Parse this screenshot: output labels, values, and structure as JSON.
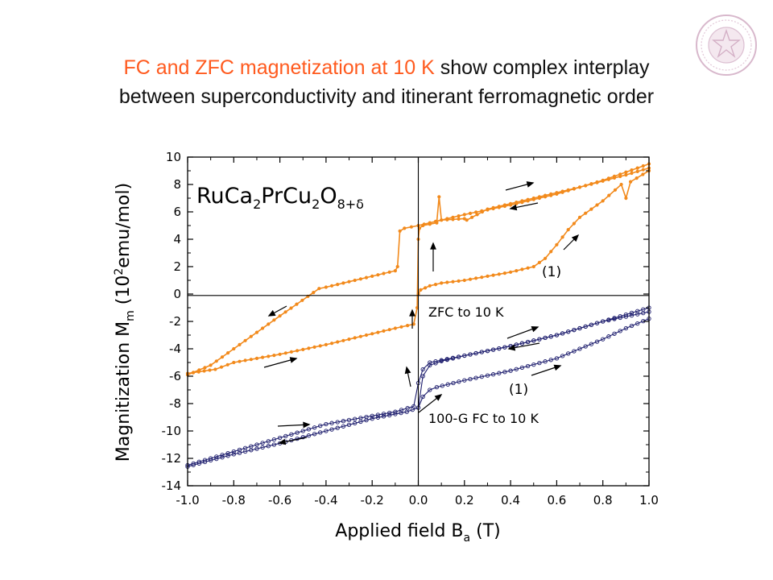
{
  "slide": {
    "title_highlight": "FC and ZFC magnetization at 10 K",
    "title_rest_line1": " show complex interplay",
    "title_line2": "between superconductivity and itinerant ferromagnetic order",
    "highlight_color": "#ff5a1e",
    "logo_icon": "university-seal-icon"
  },
  "chart_data": {
    "type": "scatter",
    "xlabel": "Applied field  B",
    "xlabel_sub": "a",
    "xlabel_unit": " (T)",
    "ylabel_main": "Magnitization  M",
    "ylabel_sub": "m",
    "ylabel_unit_pre": " (10",
    "ylabel_unit_sup": "2",
    "ylabel_unit_post": "emu/mol)",
    "xlim": [
      -1.0,
      1.0
    ],
    "ylim": [
      -14,
      10
    ],
    "x_ticks": [
      -1.0,
      -0.8,
      -0.6,
      -0.4,
      -0.2,
      0.0,
      0.2,
      0.4,
      0.6,
      0.8,
      1.0
    ],
    "x_tick_labels": [
      "-1.0",
      "-0.8",
      "-0.6",
      "-0.4",
      "-0.2",
      "0.0",
      "0.2",
      "0.4",
      "0.6",
      "0.8",
      "1.0"
    ],
    "y_ticks": [
      10,
      8,
      6,
      4,
      2,
      0,
      -2,
      -4,
      -6,
      -8,
      -10,
      -12,
      -14
    ],
    "y_tick_labels": [
      "10",
      "8",
      "6",
      "4",
      "2",
      "0",
      "-2",
      "-4",
      "-6",
      "-8",
      "-10",
      "-12",
      "-14"
    ],
    "zero_lines": true,
    "compound": {
      "a": "RuCa",
      "b": "2",
      "c": "PrCu",
      "d": "2",
      "e": "O",
      "f": "8+δ"
    },
    "annotations": {
      "zfc_label": "ZFC to 10 K",
      "fc_label": "100-G FC to 10 K",
      "zfc_initial": "(1)",
      "fc_initial": "(1)"
    },
    "series": [
      {
        "name": "ZFC to 10 K",
        "color": "#f28a1c",
        "marker": "filled-circle",
        "initial": [
          [
            0.0,
            0.0
          ],
          [
            0.01,
            0.3
          ],
          [
            0.05,
            0.6
          ],
          [
            0.1,
            0.8
          ],
          [
            0.2,
            1.0
          ],
          [
            0.3,
            1.3
          ],
          [
            0.4,
            1.6
          ],
          [
            0.5,
            2.0
          ],
          [
            0.55,
            2.6
          ],
          [
            0.6,
            3.6
          ],
          [
            0.65,
            4.7
          ],
          [
            0.7,
            5.6
          ],
          [
            0.8,
            6.8
          ],
          [
            0.88,
            8.0
          ],
          [
            0.9,
            7.0
          ],
          [
            0.92,
            8.2
          ],
          [
            1.0,
            9.0
          ]
        ],
        "descending": [
          [
            1.0,
            9.5
          ],
          [
            0.8,
            8.3
          ],
          [
            0.6,
            7.3
          ],
          [
            0.4,
            6.5
          ],
          [
            0.2,
            5.8
          ],
          [
            0.1,
            5.4
          ],
          [
            0.0,
            5.0
          ],
          [
            -0.06,
            4.8
          ],
          [
            -0.08,
            4.6
          ],
          [
            -0.09,
            2.0
          ],
          [
            -0.1,
            1.7
          ],
          [
            -0.2,
            1.3
          ],
          [
            -0.3,
            0.9
          ],
          [
            -0.4,
            0.5
          ],
          [
            -0.43,
            0.4
          ],
          [
            -0.6,
            -1.6
          ],
          [
            -0.8,
            -4.0
          ],
          [
            -0.9,
            -5.2
          ],
          [
            -1.0,
            -5.9
          ]
        ],
        "ascending": [
          [
            -1.0,
            -5.8
          ],
          [
            -0.88,
            -5.5
          ],
          [
            -0.8,
            -5.0
          ],
          [
            -0.6,
            -4.4
          ],
          [
            -0.4,
            -3.7
          ],
          [
            -0.2,
            -2.9
          ],
          [
            -0.1,
            -2.5
          ],
          [
            -0.02,
            -2.2
          ],
          [
            -0.005,
            -1.0
          ],
          [
            0.0,
            4.0
          ],
          [
            0.005,
            4.8
          ],
          [
            0.02,
            5.0
          ],
          [
            0.08,
            5.2
          ],
          [
            0.09,
            7.1
          ],
          [
            0.1,
            5.4
          ],
          [
            0.2,
            5.5
          ],
          [
            0.21,
            5.4
          ],
          [
            0.3,
            6.2
          ],
          [
            0.5,
            7.0
          ],
          [
            0.7,
            7.8
          ],
          [
            0.9,
            8.7
          ],
          [
            1.0,
            9.2
          ]
        ]
      },
      {
        "name": "100-G FC to 10 K",
        "color": "#1e1e6e",
        "marker": "open-circle",
        "initial": [
          [
            0.0,
            -8.3
          ],
          [
            0.02,
            -7.5
          ],
          [
            0.05,
            -7.0
          ],
          [
            0.08,
            -6.8
          ],
          [
            0.2,
            -6.3
          ],
          [
            0.4,
            -5.6
          ],
          [
            0.6,
            -4.7
          ],
          [
            0.8,
            -3.3
          ],
          [
            0.9,
            -2.5
          ],
          [
            1.0,
            -1.8
          ]
        ],
        "descending": [
          [
            1.0,
            -1.0
          ],
          [
            0.8,
            -2.0
          ],
          [
            0.6,
            -3.0
          ],
          [
            0.4,
            -3.8
          ],
          [
            0.2,
            -4.5
          ],
          [
            0.05,
            -5.0
          ],
          [
            0.02,
            -5.5
          ],
          [
            0.0,
            -6.5
          ],
          [
            -0.02,
            -8.2
          ],
          [
            -0.1,
            -8.6
          ],
          [
            -0.4,
            -9.5
          ],
          [
            -0.6,
            -10.5
          ],
          [
            -0.8,
            -11.5
          ],
          [
            -1.0,
            -12.5
          ]
        ],
        "ascending": [
          [
            -1.0,
            -12.6
          ],
          [
            -0.8,
            -11.7
          ],
          [
            -0.6,
            -10.9
          ],
          [
            -0.4,
            -10.0
          ],
          [
            -0.2,
            -9.1
          ],
          [
            -0.05,
            -8.6
          ],
          [
            0.0,
            -8.3
          ],
          [
            0.02,
            -6.0
          ],
          [
            0.05,
            -5.2
          ],
          [
            0.1,
            -4.9
          ],
          [
            0.2,
            -4.5
          ],
          [
            0.4,
            -3.8
          ],
          [
            0.6,
            -3.0
          ],
          [
            0.8,
            -2.0
          ],
          [
            1.0,
            -1.3
          ]
        ]
      }
    ]
  }
}
